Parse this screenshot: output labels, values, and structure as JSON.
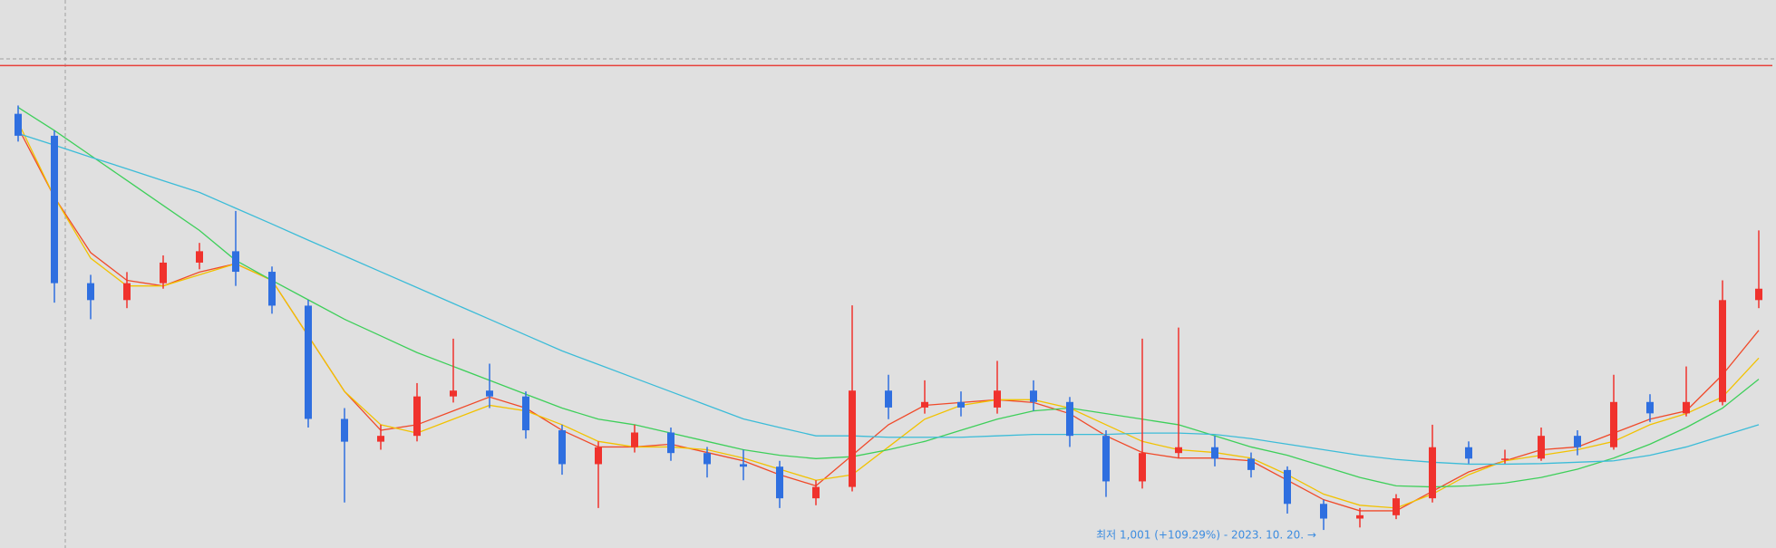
{
  "chart_data": {
    "type": "candlestick",
    "ylim": [
      936,
      2910
    ],
    "up_color": "#f0322d",
    "down_color": "#2f6fe0",
    "open": [
      2500,
      2421,
      1890,
      1829,
      1890,
      1964,
      2005,
      1931,
      1809,
      1401,
      1319,
      1340,
      1482,
      1503,
      1482,
      1360,
      1238,
      1299,
      1352,
      1278,
      1238,
      1229,
      1115,
      1156,
      1503,
      1442,
      1462,
      1442,
      1503,
      1462,
      1340,
      1176,
      1278,
      1299,
      1258,
      1217,
      1095,
      1042,
      1054,
      1115,
      1299,
      1258,
      1258,
      1340,
      1299,
      1462,
      1421,
      1462,
      1829
    ],
    "high": [
      2530,
      2440,
      1920,
      1930,
      1990,
      2035,
      2150,
      1950,
      1830,
      1440,
      1380,
      1530,
      1690,
      1600,
      1500,
      1380,
      1320,
      1380,
      1370,
      1300,
      1290,
      1250,
      1180,
      1810,
      1560,
      1540,
      1500,
      1610,
      1540,
      1480,
      1360,
      1690,
      1730,
      1340,
      1280,
      1230,
      1110,
      1080,
      1130,
      1380,
      1320,
      1290,
      1370,
      1360,
      1560,
      1490,
      1590,
      1900,
      2080
    ],
    "low": [
      2400,
      1820,
      1760,
      1800,
      1870,
      1940,
      1880,
      1780,
      1370,
      1100,
      1290,
      1320,
      1460,
      1440,
      1330,
      1200,
      1080,
      1280,
      1250,
      1190,
      1180,
      1080,
      1090,
      1140,
      1400,
      1420,
      1410,
      1420,
      1430,
      1300,
      1120,
      1150,
      1260,
      1230,
      1190,
      1060,
      1001,
      1010,
      1040,
      1100,
      1240,
      1240,
      1250,
      1270,
      1290,
      1390,
      1410,
      1450,
      1800
    ],
    "close": [
      2421,
      1890,
      1829,
      1890,
      1964,
      2005,
      1931,
      1809,
      1401,
      1319,
      1340,
      1482,
      1503,
      1482,
      1360,
      1238,
      1299,
      1352,
      1278,
      1238,
      1229,
      1115,
      1156,
      1503,
      1442,
      1462,
      1442,
      1503,
      1462,
      1340,
      1176,
      1278,
      1299,
      1258,
      1217,
      1095,
      1042,
      1054,
      1115,
      1299,
      1258,
      1258,
      1340,
      1299,
      1462,
      1421,
      1462,
      1829,
      1870
    ],
    "series": [
      {
        "color": "#f04a2a",
        "values": [
          2450,
          2200,
          2000,
          1900,
          1880,
          1930,
          1960,
          1900,
          1700,
          1500,
          1360,
          1380,
          1430,
          1480,
          1440,
          1360,
          1300,
          1300,
          1310,
          1280,
          1250,
          1200,
          1160,
          1270,
          1380,
          1450,
          1460,
          1470,
          1460,
          1420,
          1340,
          1280,
          1260,
          1260,
          1250,
          1180,
          1110,
          1070,
          1070,
          1140,
          1210,
          1250,
          1290,
          1300,
          1350,
          1400,
          1430,
          1560,
          1720
        ]
      },
      {
        "color": "#f2c200",
        "values": [
          2470,
          2200,
          1980,
          1880,
          1880,
          1920,
          1960,
          1900,
          1700,
          1500,
          1380,
          1350,
          1400,
          1450,
          1430,
          1380,
          1320,
          1300,
          1300,
          1290,
          1260,
          1220,
          1180,
          1200,
          1300,
          1400,
          1450,
          1470,
          1470,
          1440,
          1380,
          1320,
          1290,
          1280,
          1260,
          1200,
          1130,
          1090,
          1080,
          1130,
          1200,
          1250,
          1270,
          1290,
          1320,
          1380,
          1420,
          1480,
          1620
        ]
      },
      {
        "color": "#3ecf5a",
        "values": [
          2523,
          2440,
          2350,
          2260,
          2170,
          2080,
          1972,
          1900,
          1830,
          1760,
          1700,
          1640,
          1590,
          1540,
          1490,
          1440,
          1400,
          1380,
          1350,
          1320,
          1290,
          1270,
          1258,
          1265,
          1290,
          1320,
          1360,
          1400,
          1430,
          1440,
          1420,
          1400,
          1380,
          1340,
          1300,
          1270,
          1230,
          1190,
          1160,
          1156,
          1160,
          1170,
          1190,
          1220,
          1260,
          1310,
          1370,
          1440,
          1544
        ]
      },
      {
        "color": "#3cbcd8",
        "values": [
          2429,
          2387,
          2344,
          2302,
          2259,
          2217,
          2160,
          2103,
          2045,
          1988,
          1931,
          1874,
          1817,
          1760,
          1703,
          1646,
          1597,
          1548,
          1499,
          1450,
          1401,
          1370,
          1340,
          1340,
          1335,
          1335,
          1335,
          1340,
          1345,
          1345,
          1345,
          1350,
          1350,
          1345,
          1330,
          1310,
          1290,
          1270,
          1255,
          1245,
          1238,
          1238,
          1240,
          1245,
          1250,
          1270,
          1300,
          1340,
          1380
        ]
      }
    ],
    "level_line": {
      "value": 2674,
      "color": "#e8403a"
    },
    "crosshair_value": 2698,
    "annotation": "최저 1,001 (+109.29%) - 2023. 10. 20. →"
  }
}
